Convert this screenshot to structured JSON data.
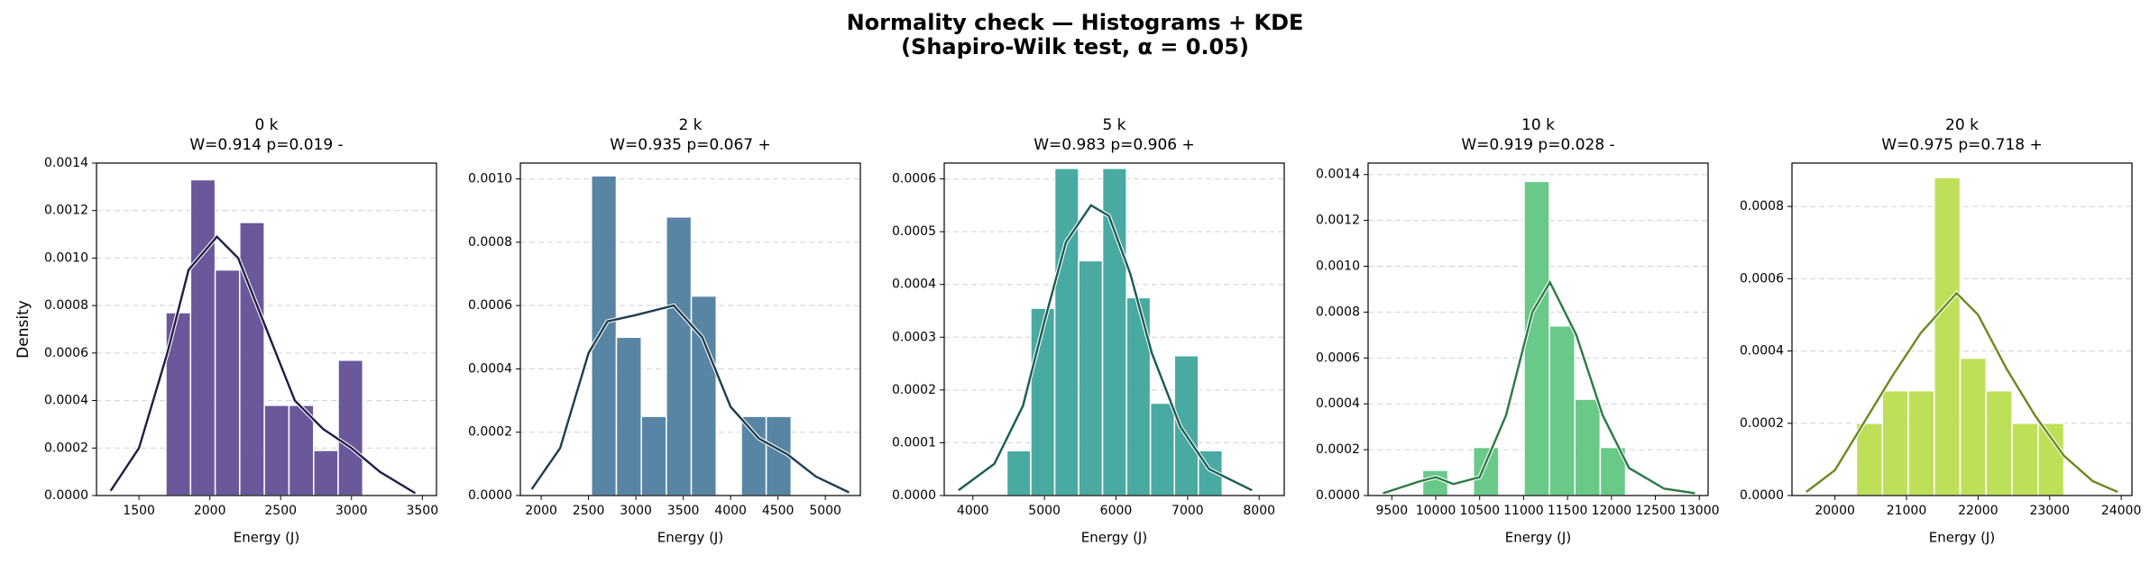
{
  "title": "Normality check — Histograms + KDE",
  "subtitle": "(Shapiro-Wilk test, α = 0.05)",
  "chart_data": [
    {
      "type": "histogram",
      "title": "0 k",
      "subtitle": "W=0.914  p=0.019 -",
      "xlabel": "Energy (J)",
      "ylabel": "Density",
      "bins": [
        1690,
        1864,
        2038,
        2211,
        2385,
        2559,
        2733,
        2906,
        3080
      ],
      "values": [
        0.00077,
        0.00133,
        0.00095,
        0.00115,
        0.00038,
        0.00038,
        0.00019,
        0.00057
      ],
      "color": "#5e4a93",
      "line": {
        "x": [
          1300,
          1500,
          1700,
          1850,
          2050,
          2200,
          2400,
          2600,
          2800,
          3000,
          3200,
          3450
        ],
        "values": [
          2e-05,
          0.0002,
          0.0006,
          0.00095,
          0.00109,
          0.001,
          0.0007,
          0.0004,
          0.00028,
          0.0002,
          0.0001,
          1e-05
        ],
        "color": "#231a45"
      },
      "xlim": [
        1200,
        3600
      ],
      "xticks": [
        1500,
        2000,
        2500,
        3000,
        3500
      ],
      "ylim": [
        0,
        0.0014
      ],
      "yticks": [
        {
          "value": 0,
          "label": "0.0000"
        },
        {
          "value": 0.0002,
          "label": "0.0002"
        },
        {
          "value": 0.0004,
          "label": "0.0004"
        },
        {
          "value": 0.0006,
          "label": "0.0006"
        },
        {
          "value": 0.0008,
          "label": "0.0008"
        },
        {
          "value": 0.001,
          "label": "0.0010"
        },
        {
          "value": 0.0012,
          "label": "0.0012"
        },
        {
          "value": 0.0014,
          "label": "0.0014"
        }
      ],
      "grid": true
    },
    {
      "type": "histogram",
      "title": "2 k",
      "subtitle": "W=0.935  p=0.067 +",
      "xlabel": "Energy (J)",
      "bins": [
        2530,
        2794,
        3058,
        3321,
        3585,
        3849,
        4113,
        4376,
        4640
      ],
      "values": [
        0.00101,
        0.0005,
        0.00025,
        0.00088,
        0.00063,
        0,
        0.00025,
        0.00025
      ],
      "color": "#4a7b9c",
      "line": {
        "x": [
          1900,
          2200,
          2500,
          2700,
          3000,
          3400,
          3700,
          4000,
          4300,
          4600,
          4900,
          5250
        ],
        "values": [
          2e-05,
          0.00015,
          0.00045,
          0.00055,
          0.00057,
          0.0006,
          0.0005,
          0.00028,
          0.00018,
          0.00013,
          6e-05,
          1e-05
        ],
        "color": "#1d3d50"
      },
      "xlim": [
        1780,
        5370
      ],
      "xticks": [
        2000,
        2500,
        3000,
        3500,
        4000,
        4500,
        5000
      ],
      "ylim": [
        0,
        0.00105
      ],
      "yticks": [
        {
          "value": 0,
          "label": "0.0000"
        },
        {
          "value": 0.0002,
          "label": "0.0002"
        },
        {
          "value": 0.0004,
          "label": "0.0004"
        },
        {
          "value": 0.0006,
          "label": "0.0006"
        },
        {
          "value": 0.0008,
          "label": "0.0008"
        },
        {
          "value": 0.001,
          "label": "0.0010"
        }
      ],
      "grid": true
    },
    {
      "type": "histogram",
      "title": "5 k",
      "subtitle": "W=0.983  p=0.906 +",
      "xlabel": "Energy (J)",
      "bins": [
        4475,
        4809,
        5144,
        5478,
        5812,
        6147,
        6481,
        6816,
        7150,
        7485
      ],
      "values": [
        8.5e-05,
        0.000355,
        0.00062,
        0.000445,
        0.00062,
        0.000375,
        0.000175,
        0.000265,
        8.5e-05
      ],
      "color": "#3aa39a",
      "line": {
        "x": [
          3800,
          4300,
          4700,
          5000,
          5300,
          5650,
          5900,
          6200,
          6500,
          6900,
          7300,
          7900
        ],
        "values": [
          1e-05,
          6e-05,
          0.00017,
          0.00033,
          0.00048,
          0.00055,
          0.00053,
          0.00042,
          0.00027,
          0.00013,
          5e-05,
          1e-05
        ],
        "color": "#1a5c54"
      },
      "xlim": [
        3600,
        8350
      ],
      "xticks": [
        4000,
        5000,
        6000,
        7000,
        8000
      ],
      "ylim": [
        0,
        0.00063
      ],
      "yticks": [
        {
          "value": 0,
          "label": "0.0000"
        },
        {
          "value": 0.0001,
          "label": "0.0001"
        },
        {
          "value": 0.0002,
          "label": "0.0002"
        },
        {
          "value": 0.0003,
          "label": "0.0003"
        },
        {
          "value": 0.0004,
          "label": "0.0004"
        },
        {
          "value": 0.0005,
          "label": "0.0005"
        },
        {
          "value": 0.0006,
          "label": "0.0006"
        }
      ],
      "grid": true
    },
    {
      "type": "histogram",
      "title": "10 k",
      "subtitle": "W=0.919  p=0.028 -",
      "xlabel": "Energy (J)",
      "bins": [
        9850,
        10139,
        10428,
        10717,
        11006,
        11294,
        11583,
        11872,
        12161
      ],
      "values": [
        0.00011,
        0,
        0.00021,
        0,
        0.00137,
        0.00074,
        0.00042,
        0.00021
      ],
      "color": "#5cc47f",
      "line": {
        "x": [
          9400,
          9800,
          10000,
          10200,
          10500,
          10800,
          11100,
          11300,
          11600,
          11900,
          12200,
          12600,
          12950
        ],
        "values": [
          1e-05,
          6e-05,
          8e-05,
          5e-05,
          8e-05,
          0.00035,
          0.0008,
          0.00093,
          0.0007,
          0.00035,
          0.00012,
          3e-05,
          1e-05
        ],
        "color": "#2b7a45"
      },
      "xlim": [
        9230,
        13100
      ],
      "xticks": [
        9500,
        10000,
        10500,
        11000,
        11500,
        12000,
        12500,
        13000
      ],
      "ylim": [
        0,
        0.00145
      ],
      "yticks": [
        {
          "value": 0,
          "label": "0.0000"
        },
        {
          "value": 0.0002,
          "label": "0.0002"
        },
        {
          "value": 0.0004,
          "label": "0.0004"
        },
        {
          "value": 0.0006,
          "label": "0.0006"
        },
        {
          "value": 0.0008,
          "label": "0.0008"
        },
        {
          "value": 0.001,
          "label": "0.0010"
        },
        {
          "value": 0.0012,
          "label": "0.0012"
        },
        {
          "value": 0.0014,
          "label": "0.0014"
        }
      ],
      "grid": true
    },
    {
      "type": "histogram",
      "title": "20 k",
      "subtitle": "W=0.975  p=0.718 +",
      "xlabel": "Energy (J)",
      "bins": [
        20300,
        20663,
        21025,
        21388,
        21750,
        22113,
        22475,
        22838,
        23200
      ],
      "values": [
        0.0002,
        0.00029,
        0.00029,
        0.00088,
        0.00038,
        0.00029,
        0.0002,
        0.0002
      ],
      "color": "#b8dd4a",
      "line": {
        "x": [
          19600,
          20000,
          20400,
          20800,
          21200,
          21700,
          22000,
          22400,
          22800,
          23200,
          23600,
          23950
        ],
        "values": [
          1e-05,
          7e-05,
          0.0002,
          0.00033,
          0.00045,
          0.00056,
          0.0005,
          0.00035,
          0.00022,
          0.00011,
          4e-05,
          1e-05
        ],
        "color": "#6a8a1e"
      },
      "xlim": [
        19400,
        24150
      ],
      "xticks": [
        20000,
        21000,
        22000,
        23000,
        24000
      ],
      "ylim": [
        0,
        0.00092
      ],
      "yticks": [
        {
          "value": 0,
          "label": "0.0000"
        },
        {
          "value": 0.0002,
          "label": "0.0002"
        },
        {
          "value": 0.0004,
          "label": "0.0004"
        },
        {
          "value": 0.0006,
          "label": "0.0006"
        },
        {
          "value": 0.0008,
          "label": "0.0008"
        }
      ],
      "grid": true
    }
  ]
}
